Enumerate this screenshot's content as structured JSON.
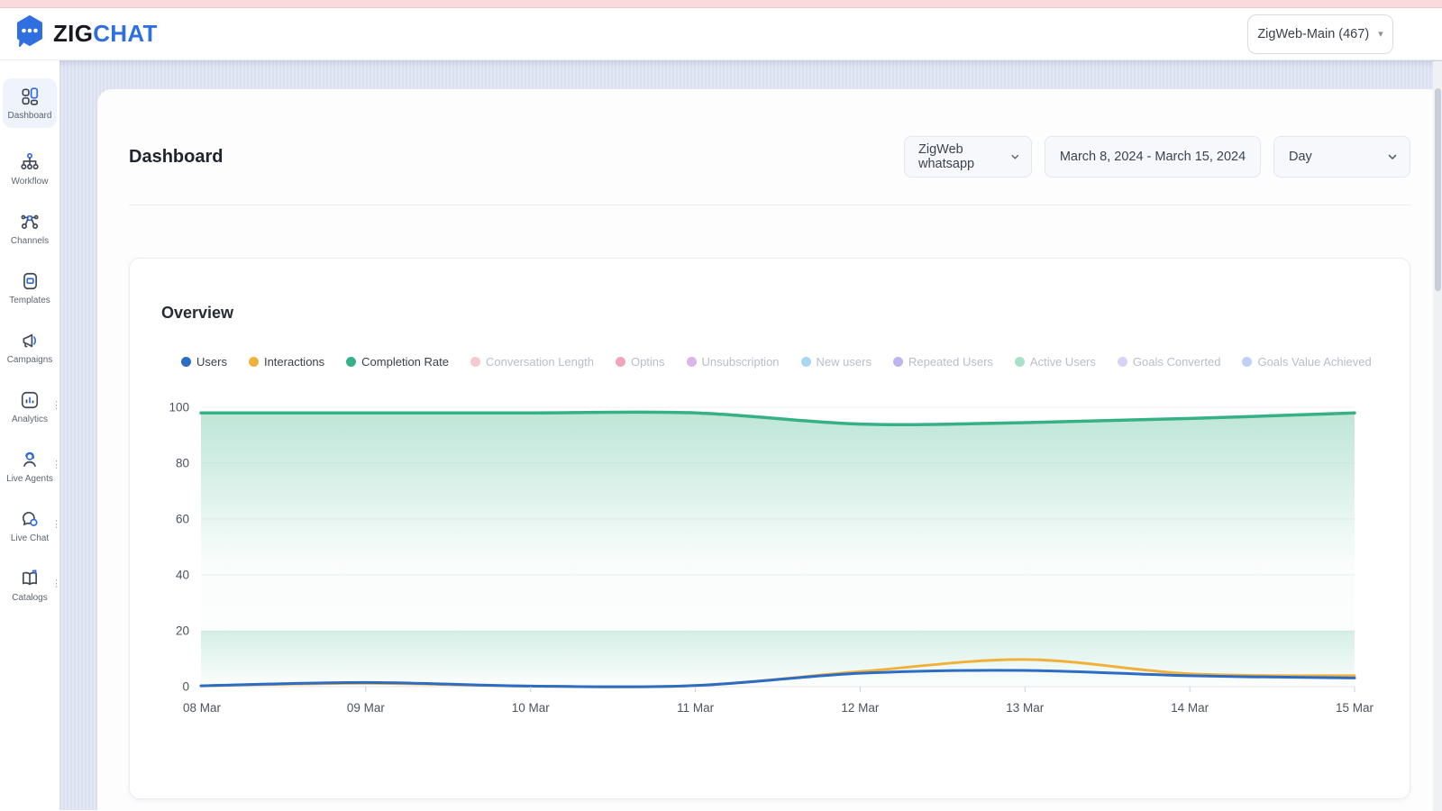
{
  "header": {
    "brand": {
      "primary": "ZIG",
      "secondary": "CHAT",
      "icon": "chat-bubble-logo"
    },
    "account_selector": {
      "value": "ZigWeb-Main (467)",
      "caret": "▾"
    }
  },
  "sidebar": {
    "items": [
      {
        "label": "Dashboard",
        "icon": "dashboard-grid-icon",
        "active": true
      },
      {
        "label": "Workflow",
        "icon": "workflow-tree-icon",
        "active": false
      },
      {
        "label": "Channels",
        "icon": "channels-network-icon",
        "active": false
      },
      {
        "label": "Templates",
        "icon": "templates-cards-icon",
        "active": false
      },
      {
        "label": "Campaigns",
        "icon": "megaphone-icon",
        "active": false
      },
      {
        "label": "Analytics",
        "icon": "bar-chart-icon",
        "active": false,
        "has_menu_dots": true
      },
      {
        "label": "Live Agents",
        "icon": "agent-headset-icon",
        "active": false,
        "has_menu_dots": true
      },
      {
        "label": "Live Chat",
        "icon": "chat-bubbles-icon",
        "active": false,
        "has_menu_dots": true
      },
      {
        "label": "Catalogs",
        "icon": "open-book-icon",
        "active": false,
        "has_menu_dots": true
      }
    ]
  },
  "page": {
    "title": "Dashboard",
    "filters": {
      "channel": {
        "value": "ZigWeb whatsapp"
      },
      "date_range": {
        "value": "March 8, 2024 - March 15, 2024"
      },
      "granularity": {
        "value": "Day"
      }
    }
  },
  "overview": {
    "title": "Overview"
  },
  "colors": {
    "accent_blue": "#2f6fe0",
    "top_strip_pink": "#fbdade",
    "completion_green": "#36b185"
  },
  "chart_data": {
    "type": "line",
    "title": "Overview",
    "xlabel": "",
    "ylabel": "",
    "x": [
      "08 Mar",
      "09 Mar",
      "10 Mar",
      "11 Mar",
      "12 Mar",
      "13 Mar",
      "14 Mar",
      "15 Mar"
    ],
    "ylim": [
      0,
      100
    ],
    "yticks": [
      0,
      20,
      40,
      60,
      80,
      100
    ],
    "grid": true,
    "legend_position": "top",
    "series": [
      {
        "name": "Users",
        "color": "#2d6cc4",
        "active": true,
        "values": [
          0.3,
          1.5,
          0.2,
          0.4,
          4.8,
          5.8,
          3.9,
          3.1
        ]
      },
      {
        "name": "Interactions",
        "color": "#f0b13a",
        "active": true,
        "values": [
          0.3,
          1.2,
          0.2,
          0.4,
          5.4,
          9.7,
          4.6,
          3.9
        ]
      },
      {
        "name": "Completion Rate",
        "color": "#36b185",
        "active": true,
        "area": true,
        "values": [
          98,
          98,
          98,
          98,
          94,
          94.5,
          96,
          98
        ]
      },
      {
        "name": "Conversation Length",
        "color": "#f6c9ce",
        "active": false
      },
      {
        "name": "Optins",
        "color": "#f2a4bc",
        "active": false
      },
      {
        "name": "Unsubscription",
        "color": "#dcb3ea",
        "active": false
      },
      {
        "name": "New users",
        "color": "#abd6f2",
        "active": false
      },
      {
        "name": "Repeated Users",
        "color": "#bdb5ee",
        "active": false
      },
      {
        "name": "Active Users",
        "color": "#a8e0c8",
        "active": false
      },
      {
        "name": "Goals Converted",
        "color": "#d8d3f5",
        "active": false
      },
      {
        "name": "Goals Value Achieved",
        "color": "#bfcff7",
        "active": false
      }
    ]
  }
}
